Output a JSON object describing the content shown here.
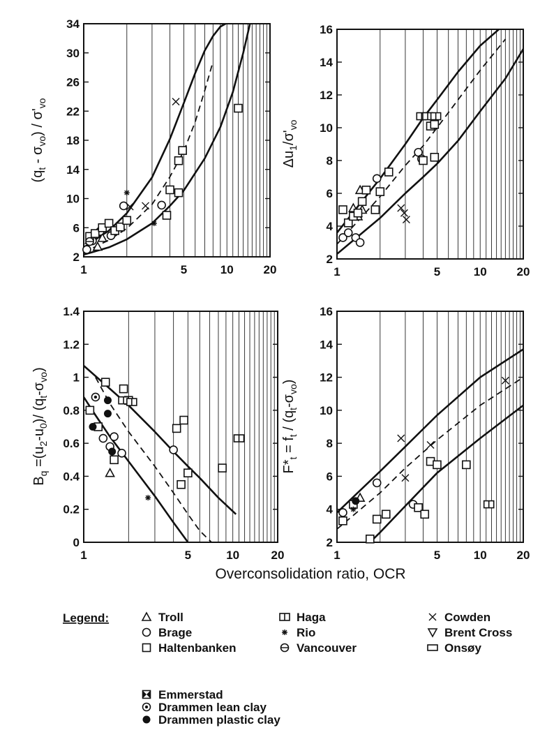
{
  "chart_data": [
    {
      "type": "scatter",
      "id": "qt",
      "ylabel_parts": [
        "(q",
        "t",
        " - σ",
        "vo",
        ") / σ'",
        "vo"
      ],
      "xscale": "log",
      "xlim": [
        1,
        20
      ],
      "ylim": [
        2,
        34
      ],
      "xticks": [
        1,
        5,
        10,
        20
      ],
      "yticks": [
        2,
        6,
        10,
        14,
        18,
        22,
        26,
        30,
        34
      ],
      "grid": "vertical lines at each integer OCR",
      "curves": [
        {
          "style": "solid",
          "x": [
            1,
            1.5,
            2,
            3,
            4,
            5,
            6,
            7,
            8,
            9,
            9.8
          ],
          "y": [
            3.3,
            5.6,
            8.0,
            12.9,
            18.2,
            23.1,
            27.2,
            30.3,
            32.3,
            33.6,
            34
          ]
        },
        {
          "style": "solid",
          "x": [
            1,
            1.5,
            2,
            3,
            4,
            5,
            7,
            9,
            11,
            13,
            14.5
          ],
          "y": [
            2.3,
            3.3,
            4.4,
            6.6,
            9.0,
            11.1,
            15.5,
            19.8,
            24.6,
            30.0,
            34
          ]
        },
        {
          "style": "dashed",
          "x": [
            1,
            1.5,
            2,
            3,
            4,
            5,
            6,
            7,
            8
          ],
          "y": [
            2.6,
            4.3,
            5.9,
            9.2,
            13.0,
            16.5,
            20.5,
            24.8,
            28.8
          ]
        }
      ],
      "points": [
        {
          "s": "Troll",
          "x": 1.1,
          "y": 4.3
        },
        {
          "s": "Troll",
          "x": 1.25,
          "y": 3.4
        },
        {
          "s": "Troll",
          "x": 1.35,
          "y": 4.6
        },
        {
          "s": "Brage",
          "x": 1.05,
          "y": 3.0
        },
        {
          "s": "Brage",
          "x": 1.15,
          "y": 4.2
        },
        {
          "s": "Brage",
          "x": 1.3,
          "y": 5.5
        },
        {
          "s": "Brage",
          "x": 1.55,
          "y": 4.9
        },
        {
          "s": "Brage",
          "x": 1.9,
          "y": 9.0
        },
        {
          "s": "Brage",
          "x": 3.5,
          "y": 9.1
        },
        {
          "s": "Haltenbanken",
          "x": 1.1,
          "y": 4.8
        },
        {
          "s": "Haltenbanken",
          "x": 1.2,
          "y": 5.2
        },
        {
          "s": "Haltenbanken",
          "x": 1.35,
          "y": 6.0
        },
        {
          "s": "Haltenbanken",
          "x": 1.5,
          "y": 6.6
        },
        {
          "s": "Haltenbanken",
          "x": 1.65,
          "y": 5.6
        },
        {
          "s": "Haltenbanken",
          "x": 1.8,
          "y": 6.1
        },
        {
          "s": "Haltenbanken",
          "x": 2.0,
          "y": 7.0
        },
        {
          "s": "Haltenbanken",
          "x": 3.8,
          "y": 7.7
        },
        {
          "s": "Haltenbanken",
          "x": 4.0,
          "y": 11.2
        },
        {
          "s": "Haltenbanken",
          "x": 4.6,
          "y": 10.8
        },
        {
          "s": "Haltenbanken",
          "x": 4.6,
          "y": 15.2
        },
        {
          "s": "Haltenbanken",
          "x": 4.9,
          "y": 16.6
        },
        {
          "s": "Haltenbanken",
          "x": 12.0,
          "y": 22.4
        },
        {
          "s": "Cowden",
          "x": 2.1,
          "y": 8.9
        },
        {
          "s": "Cowden",
          "x": 2.7,
          "y": 9.0
        },
        {
          "s": "Cowden",
          "x": 4.4,
          "y": 23.3
        },
        {
          "s": "Rio",
          "x": 2.0,
          "y": 10.8
        },
        {
          "s": "Rio",
          "x": 3.1,
          "y": 6.6
        },
        {
          "s": "Vancouver",
          "x": 1.1,
          "y": 4.1
        }
      ]
    },
    {
      "type": "scatter",
      "id": "du",
      "ylabel_parts": [
        "Δu",
        "1",
        "/σ'",
        "vo"
      ],
      "xscale": "log",
      "xlim": [
        1,
        20
      ],
      "ylim": [
        2,
        16
      ],
      "xticks": [
        1,
        5,
        10,
        20
      ],
      "yticks": [
        2,
        4,
        6,
        8,
        10,
        12,
        14,
        16
      ],
      "grid": "vertical lines at each integer OCR",
      "curves": [
        {
          "style": "solid",
          "x": [
            1,
            2,
            3,
            4,
            5,
            7,
            10,
            13.5
          ],
          "y": [
            3.6,
            6.9,
            9.0,
            10.6,
            11.7,
            13.4,
            15.0,
            16
          ]
        },
        {
          "style": "solid",
          "x": [
            1,
            2,
            3,
            4,
            5,
            7,
            10,
            15,
            20
          ],
          "y": [
            2.3,
            4.5,
            6.0,
            7.0,
            7.8,
            9.2,
            11.0,
            13.0,
            14.8
          ]
        },
        {
          "style": "dashed",
          "x": [
            1,
            2,
            3,
            4,
            5,
            7,
            10,
            15
          ],
          "y": [
            2.9,
            5.8,
            7.7,
            8.9,
            10.0,
            11.7,
            13.5,
            15.4
          ]
        }
      ],
      "points": [
        {
          "s": "Troll",
          "x": 1.3,
          "y": 5.1
        },
        {
          "s": "Troll",
          "x": 1.4,
          "y": 4.6
        },
        {
          "s": "Troll",
          "x": 1.45,
          "y": 6.2
        },
        {
          "s": "Troll",
          "x": 1.5,
          "y": 5.0
        },
        {
          "s": "Brage",
          "x": 1.1,
          "y": 3.3
        },
        {
          "s": "Brage",
          "x": 1.2,
          "y": 3.6
        },
        {
          "s": "Brage",
          "x": 1.35,
          "y": 3.3
        },
        {
          "s": "Brage",
          "x": 1.45,
          "y": 3.0
        },
        {
          "s": "Brage",
          "x": 1.9,
          "y": 6.9
        },
        {
          "s": "Brage",
          "x": 3.7,
          "y": 8.5
        },
        {
          "s": "Brage",
          "x": 3.9,
          "y": 8.1
        },
        {
          "s": "Haltenbanken",
          "x": 1.1,
          "y": 5.0
        },
        {
          "s": "Haltenbanken",
          "x": 1.2,
          "y": 4.2
        },
        {
          "s": "Haltenbanken",
          "x": 1.3,
          "y": 4.6
        },
        {
          "s": "Haltenbanken",
          "x": 1.4,
          "y": 4.8
        },
        {
          "s": "Haltenbanken",
          "x": 1.5,
          "y": 5.5
        },
        {
          "s": "Haltenbanken",
          "x": 1.6,
          "y": 6.2
        },
        {
          "s": "Haltenbanken",
          "x": 1.85,
          "y": 5.0
        },
        {
          "s": "Haltenbanken",
          "x": 2.0,
          "y": 6.1
        },
        {
          "s": "Haltenbanken",
          "x": 2.3,
          "y": 7.3
        },
        {
          "s": "Haltenbanken",
          "x": 4.0,
          "y": 8.0
        },
        {
          "s": "Haltenbanken",
          "x": 4.5,
          "y": 10.1
        },
        {
          "s": "Haltenbanken",
          "x": 4.8,
          "y": 10.2
        },
        {
          "s": "Haltenbanken",
          "x": 4.8,
          "y": 8.2
        },
        {
          "s": "Haga",
          "x": 3.9,
          "y": 10.7
        },
        {
          "s": "Haga",
          "x": 4.3,
          "y": 10.7
        },
        {
          "s": "Haga",
          "x": 4.9,
          "y": 10.7
        },
        {
          "s": "Cowden",
          "x": 2.8,
          "y": 5.1
        },
        {
          "s": "Cowden",
          "x": 2.95,
          "y": 4.8
        },
        {
          "s": "Cowden",
          "x": 3.05,
          "y": 4.4
        }
      ]
    },
    {
      "type": "scatter",
      "id": "bq",
      "ylabel_parts": [
        "B",
        "q",
        " =(u",
        "2",
        "-u",
        "0",
        ")/ (q",
        "t",
        "-σ",
        "vo",
        ")"
      ],
      "xscale": "log",
      "xlim": [
        1,
        20
      ],
      "ylim": [
        0,
        1.4
      ],
      "xticks": [
        1,
        5,
        10,
        20
      ],
      "yticks": [
        0,
        0.2,
        0.4,
        0.6,
        0.8,
        1.0,
        1.2,
        1.4
      ],
      "grid": "vertical lines at each integer OCR",
      "curves": [
        {
          "style": "solid",
          "x": [
            1,
            1.5,
            2,
            3,
            4,
            5,
            6,
            8,
            10.5
          ],
          "y": [
            1.07,
            0.93,
            0.83,
            0.67,
            0.55,
            0.46,
            0.39,
            0.27,
            0.17
          ]
        },
        {
          "style": "solid",
          "x": [
            1,
            1.2,
            1.5,
            2,
            3,
            4,
            5
          ],
          "y": [
            0.88,
            0.77,
            0.64,
            0.49,
            0.28,
            0.12,
            0.0
          ]
        },
        {
          "style": "dashed",
          "x": [
            1.2,
            1.5,
            2,
            3,
            4,
            5,
            6,
            7.2
          ],
          "y": [
            1.0,
            0.84,
            0.67,
            0.46,
            0.3,
            0.17,
            0.07,
            0.0
          ]
        }
      ],
      "points": [
        {
          "s": "Troll",
          "x": 1.5,
          "y": 0.42
        },
        {
          "s": "Brage",
          "x": 1.35,
          "y": 0.63
        },
        {
          "s": "Brage",
          "x": 1.5,
          "y": 0.58
        },
        {
          "s": "Brage",
          "x": 1.6,
          "y": 0.64
        },
        {
          "s": "Brage",
          "x": 1.8,
          "y": 0.54
        },
        {
          "s": "Brage",
          "x": 4.0,
          "y": 0.56
        },
        {
          "s": "Haltenbanken",
          "x": 1.1,
          "y": 0.8
        },
        {
          "s": "Haltenbanken",
          "x": 1.25,
          "y": 0.7
        },
        {
          "s": "Haltenbanken",
          "x": 1.4,
          "y": 0.97
        },
        {
          "s": "Haltenbanken",
          "x": 1.6,
          "y": 0.5
        },
        {
          "s": "Haltenbanken",
          "x": 1.85,
          "y": 0.93
        },
        {
          "s": "Haltenbanken",
          "x": 2.0,
          "y": 0.86
        },
        {
          "s": "Haltenbanken",
          "x": 4.2,
          "y": 0.69
        },
        {
          "s": "Haltenbanken",
          "x": 4.5,
          "y": 0.35
        },
        {
          "s": "Haltenbanken",
          "x": 4.7,
          "y": 0.74
        },
        {
          "s": "Haltenbanken",
          "x": 5.0,
          "y": 0.42
        },
        {
          "s": "Haltenbanken",
          "x": 8.5,
          "y": 0.45
        },
        {
          "s": "Haga",
          "x": 1.85,
          "y": 0.86
        },
        {
          "s": "Haga",
          "x": 2.1,
          "y": 0.85
        },
        {
          "s": "Haga",
          "x": 11.0,
          "y": 0.63
        },
        {
          "s": "Rio",
          "x": 2.7,
          "y": 0.27
        },
        {
          "s": "Drammen lean clay",
          "x": 1.2,
          "y": 0.88
        },
        {
          "s": "Drammen plastic clay",
          "x": 1.15,
          "y": 0.7
        },
        {
          "s": "Drammen plastic clay",
          "x": 1.45,
          "y": 0.86
        },
        {
          "s": "Drammen plastic clay",
          "x": 1.45,
          "y": 0.78
        },
        {
          "s": "Drammen plastic clay",
          "x": 1.55,
          "y": 0.55
        }
      ]
    },
    {
      "type": "scatter",
      "id": "ft",
      "ylabel_parts": [
        "F*",
        "t",
        " = f",
        "t",
        " / (q",
        "t",
        "-σ",
        "vo",
        ")"
      ],
      "xscale": "log",
      "xlim": [
        1,
        20
      ],
      "ylim": [
        2,
        16
      ],
      "xticks": [
        1,
        5,
        10,
        20
      ],
      "yticks": [
        2,
        4,
        6,
        8,
        10,
        12,
        14,
        16
      ],
      "grid": "vertical lines at each integer OCR",
      "curves": [
        {
          "style": "solid",
          "x": [
            1,
            2,
            3,
            5,
            10,
            20
          ],
          "y": [
            3.8,
            6.3,
            7.8,
            9.7,
            12.0,
            13.7
          ]
        },
        {
          "style": "solid",
          "x": [
            1.7,
            2,
            3,
            5,
            10,
            20
          ],
          "y": [
            2.0,
            2.6,
            4.2,
            6.2,
            8.3,
            10.3
          ]
        },
        {
          "style": "dashed",
          "x": [
            1,
            2,
            3,
            5,
            10,
            20
          ],
          "y": [
            2.8,
            5.0,
            6.5,
            8.2,
            10.3,
            12.0
          ]
        }
      ],
      "points": [
        {
          "s": "Troll",
          "x": 1.45,
          "y": 4.7
        },
        {
          "s": "Brage",
          "x": 1.1,
          "y": 3.8
        },
        {
          "s": "Brage",
          "x": 1.9,
          "y": 5.6
        },
        {
          "s": "Brage",
          "x": 3.4,
          "y": 4.3
        },
        {
          "s": "Haltenbanken",
          "x": 1.1,
          "y": 3.3
        },
        {
          "s": "Haltenbanken",
          "x": 1.3,
          "y": 4.3
        },
        {
          "s": "Haltenbanken",
          "x": 1.7,
          "y": 2.2
        },
        {
          "s": "Haltenbanken",
          "x": 1.9,
          "y": 3.4
        },
        {
          "s": "Haltenbanken",
          "x": 2.2,
          "y": 3.7
        },
        {
          "s": "Haltenbanken",
          "x": 3.7,
          "y": 4.1
        },
        {
          "s": "Haltenbanken",
          "x": 4.1,
          "y": 3.7
        },
        {
          "s": "Haltenbanken",
          "x": 4.5,
          "y": 6.9
        },
        {
          "s": "Haltenbanken",
          "x": 5.0,
          "y": 6.7
        },
        {
          "s": "Haltenbanken",
          "x": 8.0,
          "y": 6.7
        },
        {
          "s": "Haga",
          "x": 11.5,
          "y": 4.3
        },
        {
          "s": "Cowden",
          "x": 2.8,
          "y": 8.3
        },
        {
          "s": "Cowden",
          "x": 3.0,
          "y": 5.9
        },
        {
          "s": "Cowden",
          "x": 4.5,
          "y": 7.9
        },
        {
          "s": "Cowden",
          "x": 15.0,
          "y": 11.8
        },
        {
          "s": "Rio",
          "x": 1.3,
          "y": 4.0
        },
        {
          "s": "Drammen plastic clay",
          "x": 1.35,
          "y": 4.5
        }
      ]
    }
  ],
  "xaxis_label": "Overconsolidation ratio, OCR",
  "legend": {
    "title": "Legend:",
    "items": [
      {
        "name": "Troll",
        "marker": "triangle-up"
      },
      {
        "name": "Brage",
        "marker": "circle"
      },
      {
        "name": "Haltenbanken",
        "marker": "square"
      },
      {
        "name": "Haga",
        "marker": "square-double"
      },
      {
        "name": "Rio",
        "marker": "star"
      },
      {
        "name": "Vancouver",
        "marker": "theta-circle"
      },
      {
        "name": "Cowden",
        "marker": "cross"
      },
      {
        "name": "Brent Cross",
        "marker": "triangle-down"
      },
      {
        "name": "Onsøy",
        "marker": "rectangle"
      },
      {
        "name": "Emmerstad",
        "marker": "square-bowtie"
      },
      {
        "name": "Drammen lean clay",
        "marker": "dot-circle"
      },
      {
        "name": "Drammen plastic clay",
        "marker": "filled-circle"
      }
    ]
  }
}
